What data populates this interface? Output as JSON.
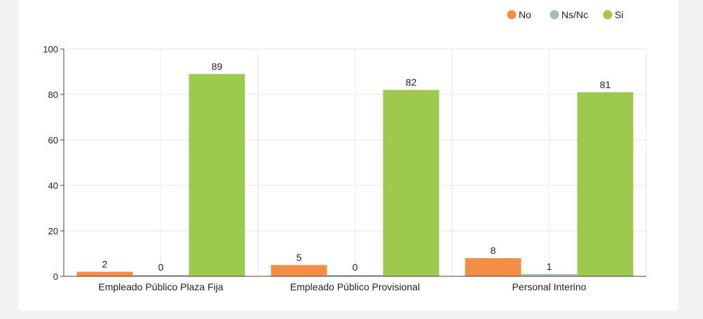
{
  "chart_data": {
    "type": "bar",
    "categories": [
      "Empleado Público Plaza Fija",
      "Empleado Público Provisional",
      "Personal Interino"
    ],
    "series": [
      {
        "name": "No",
        "values": [
          2,
          5,
          8
        ],
        "color": "#f28e45"
      },
      {
        "name": "Ns/Nc",
        "values": [
          0,
          0,
          1
        ],
        "color": "#a6bcbd"
      },
      {
        "name": "Si",
        "values": [
          89,
          82,
          81
        ],
        "color": "#9dc94f"
      }
    ],
    "title": "",
    "xlabel": "",
    "ylabel": "",
    "ylim": [
      0,
      100
    ],
    "yticks": [
      0,
      20,
      40,
      60,
      80,
      100
    ],
    "grid": true,
    "legend": "top-right"
  }
}
